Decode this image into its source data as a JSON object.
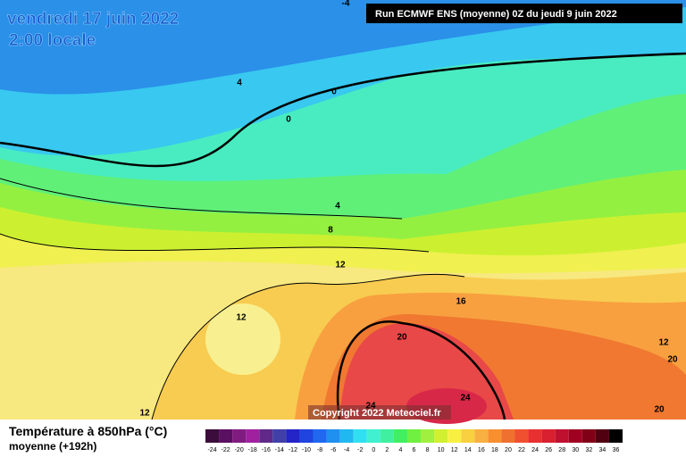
{
  "header": {
    "date": "vendredi 17 juin 2022",
    "time": "2:00 locale",
    "run": "Run ECMWF ENS (moyenne) 0Z du jeudi 9 juin 2022"
  },
  "map": {
    "contour_labels": [
      "-4",
      "4",
      "0",
      "0",
      "4",
      "8",
      "12",
      "12",
      "16",
      "20",
      "24",
      "24",
      "12",
      "12",
      "20",
      "20"
    ],
    "copyright": "Copyright 2022 Meteociel.fr"
  },
  "legend": {
    "title": "Température à 850hPa (°C)",
    "subtitle": "moyenne   (+192h)",
    "steps": [
      {
        "label": "-24",
        "color": "#3c0c3c"
      },
      {
        "label": "-22",
        "color": "#5a1060"
      },
      {
        "label": "-20",
        "color": "#801c80"
      },
      {
        "label": "-18",
        "color": "#a020a0"
      },
      {
        "label": "-16",
        "color": "#602888"
      },
      {
        "label": "-14",
        "color": "#4040a8"
      },
      {
        "label": "-12",
        "color": "#2424c8"
      },
      {
        "label": "-10",
        "color": "#2044e0"
      },
      {
        "label": "-8",
        "color": "#2068f0"
      },
      {
        "label": "-6",
        "color": "#2090f0"
      },
      {
        "label": "-4",
        "color": "#20b8f0"
      },
      {
        "label": "-2",
        "color": "#30e0f0"
      },
      {
        "label": "0",
        "color": "#40f0d0"
      },
      {
        "label": "2",
        "color": "#40f0a0"
      },
      {
        "label": "4",
        "color": "#40f060"
      },
      {
        "label": "6",
        "color": "#70f040"
      },
      {
        "label": "8",
        "color": "#a0f040"
      },
      {
        "label": "10",
        "color": "#d0f030"
      },
      {
        "label": "12",
        "color": "#f8f040"
      },
      {
        "label": "14",
        "color": "#f8d040"
      },
      {
        "label": "16",
        "color": "#f8b040"
      },
      {
        "label": "18",
        "color": "#f89030"
      },
      {
        "label": "20",
        "color": "#f07030"
      },
      {
        "label": "22",
        "color": "#f05030"
      },
      {
        "label": "24",
        "color": "#e83030"
      },
      {
        "label": "26",
        "color": "#d82030"
      },
      {
        "label": "28",
        "color": "#c01030"
      },
      {
        "label": "30",
        "color": "#a00020"
      },
      {
        "label": "32",
        "color": "#800018"
      },
      {
        "label": "34",
        "color": "#500010"
      },
      {
        "label": "36",
        "color": "#000000"
      }
    ]
  }
}
